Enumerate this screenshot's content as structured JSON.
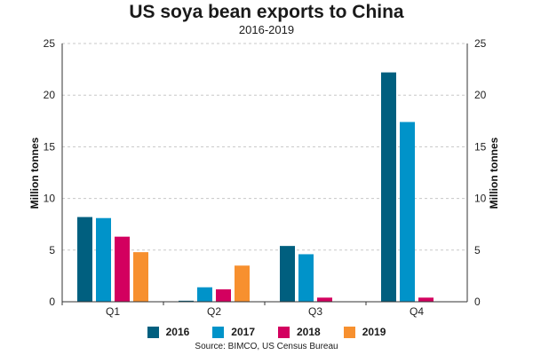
{
  "chart_data": {
    "type": "bar",
    "title": "US soya bean exports to China",
    "subtitle": "2016-2019",
    "ylabel": "Million tonnes",
    "ylim": [
      0,
      25
    ],
    "yticks": [
      0,
      5,
      10,
      15,
      20,
      25
    ],
    "grid": true,
    "legend_placement": "bottom",
    "categories": [
      "Q1",
      "Q2",
      "Q3",
      "Q4"
    ],
    "series": [
      {
        "name": "2016",
        "color": "#005f7f",
        "values": [
          8.2,
          0.1,
          5.4,
          22.2
        ]
      },
      {
        "name": "2017",
        "color": "#0093c9",
        "values": [
          8.1,
          1.4,
          4.6,
          17.4
        ]
      },
      {
        "name": "2018",
        "color": "#d3005f",
        "values": [
          6.3,
          1.2,
          0.4,
          0.4
        ]
      },
      {
        "name": "2019",
        "color": "#f7902f",
        "values": [
          4.8,
          3.5,
          0,
          0
        ]
      }
    ],
    "source": "Source: BIMCO, US Census Bureau"
  }
}
